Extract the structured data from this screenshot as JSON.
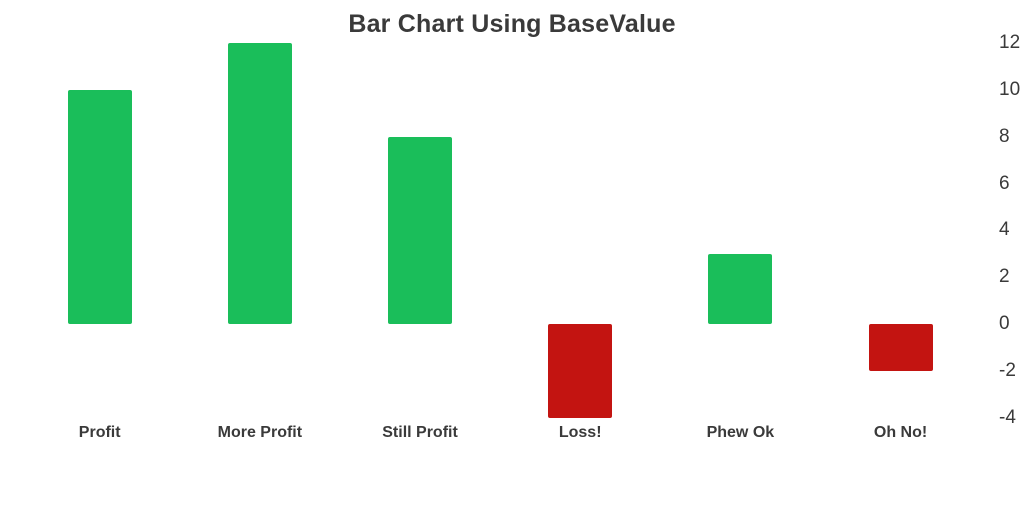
{
  "chart_data": {
    "type": "bar",
    "title": "Bar Chart Using BaseValue",
    "categories": [
      "Profit",
      "More Profit",
      "Still Profit",
      "Loss!",
      "Phew Ok",
      "Oh No!"
    ],
    "values": [
      10,
      12,
      8,
      -4,
      3,
      -2
    ],
    "base_value": 0,
    "ylim": [
      -4,
      12
    ],
    "y_ticks": [
      12,
      10,
      8,
      6,
      4,
      2,
      0,
      -2,
      -4
    ],
    "y_axis_position": "right",
    "grid": false,
    "legend": "none",
    "colors": {
      "positive_bar": "#1abe5a",
      "negative_bar": "#c31411",
      "title_text": "#3a3a3a",
      "axis_text": "#3a3a3a",
      "background": "#ffffff"
    }
  }
}
